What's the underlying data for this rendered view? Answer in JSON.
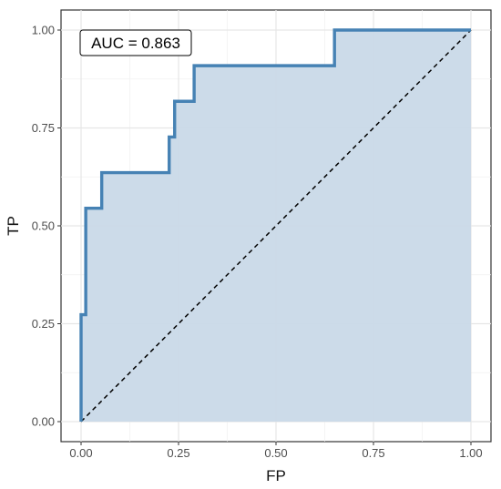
{
  "chart_data": {
    "type": "line",
    "xlabel": "FP",
    "ylabel": "TP",
    "xlim": [
      0,
      1
    ],
    "ylim": [
      0,
      1
    ],
    "x_ticks": [
      "0.00",
      "0.25",
      "0.50",
      "0.75",
      "1.00"
    ],
    "y_ticks": [
      "0.00",
      "0.25",
      "0.50",
      "0.75",
      "1.00"
    ],
    "grid": true,
    "annotation": "AUC = 0.863",
    "series": [
      {
        "color": "#4682b4",
        "fill": "#c9d9e8",
        "step": true,
        "points": [
          [
            0.0,
            0.0
          ],
          [
            0.0,
            0.273
          ],
          [
            0.012,
            0.273
          ],
          [
            0.012,
            0.545
          ],
          [
            0.053,
            0.545
          ],
          [
            0.053,
            0.636
          ],
          [
            0.226,
            0.636
          ],
          [
            0.226,
            0.727
          ],
          [
            0.24,
            0.727
          ],
          [
            0.24,
            0.818
          ],
          [
            0.29,
            0.818
          ],
          [
            0.29,
            0.909
          ],
          [
            0.65,
            0.909
          ],
          [
            0.65,
            1.0
          ],
          [
            1.0,
            1.0
          ]
        ]
      }
    ],
    "reference_line": {
      "style": "dashed",
      "color": "#000000",
      "from": [
        0,
        0
      ],
      "to": [
        1,
        1
      ]
    }
  }
}
